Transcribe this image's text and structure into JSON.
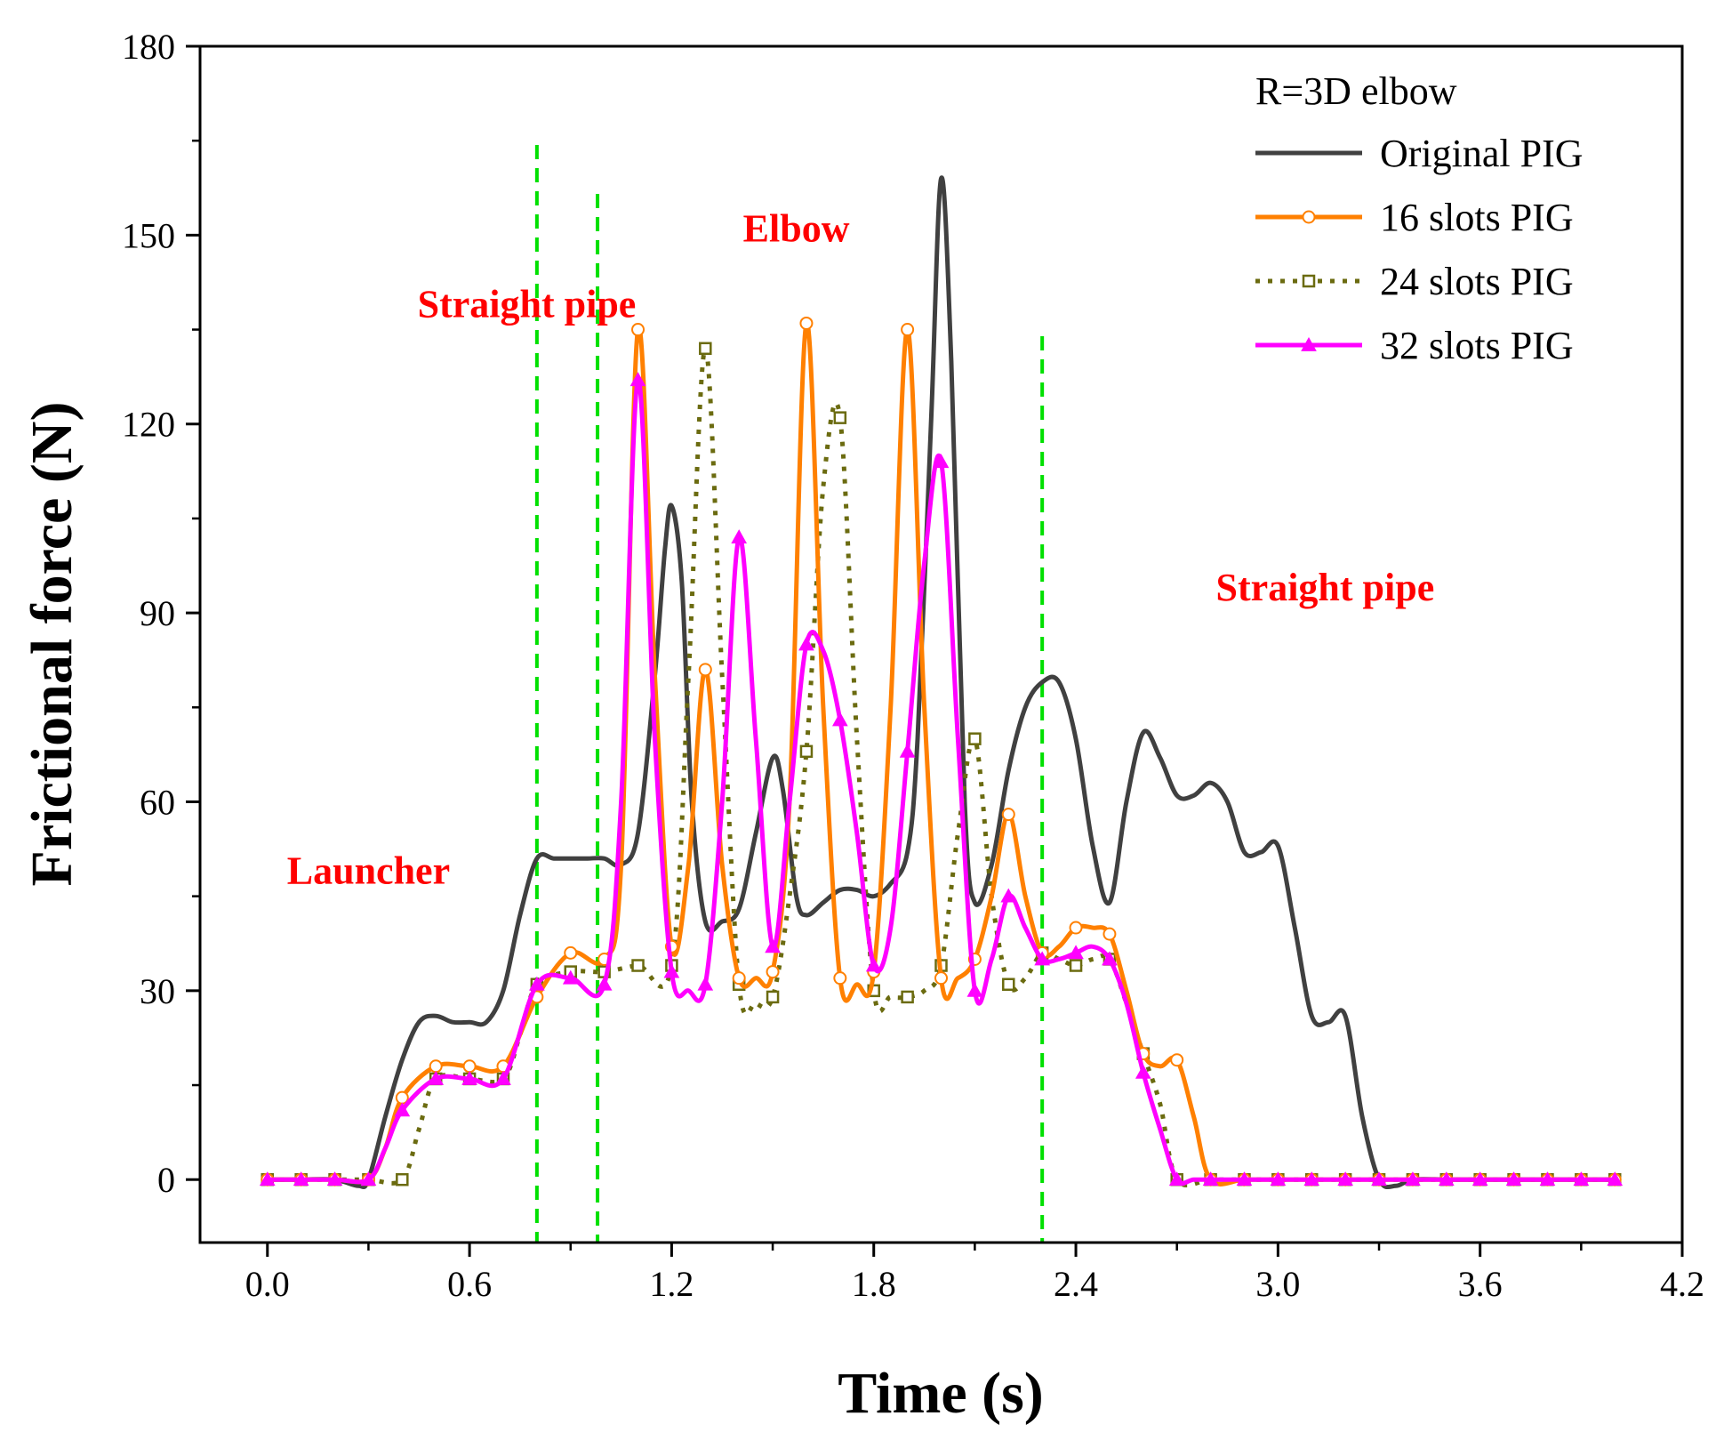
{
  "chart_data": {
    "type": "line",
    "title": "",
    "xlabel": "Time (s)",
    "ylabel": "Frictional force (N)",
    "xlim": [
      -0.2,
      4.2
    ],
    "ylim": [
      -10,
      180
    ],
    "xticks": [
      0.0,
      0.6,
      1.2,
      1.8,
      2.4,
      3.0,
      3.6,
      4.2
    ],
    "xtick_labels": [
      "0.0",
      "0.6",
      "1.2",
      "1.8",
      "2.4",
      "3.0",
      "3.6",
      "4.2"
    ],
    "yticks": [
      0,
      30,
      60,
      90,
      120,
      150,
      180
    ],
    "ytick_labels": [
      "0",
      "30",
      "60",
      "90",
      "120",
      "150",
      "180"
    ],
    "legend_title": "R=3D elbow",
    "legend_position": "top-right",
    "region_lines_x": [
      0.8,
      0.98,
      2.3
    ],
    "annotations": [
      {
        "text": "Launcher",
        "x": 0.3,
        "y": 47
      },
      {
        "text": "Straight pipe",
        "x": 0.77,
        "y": 137
      },
      {
        "text": "Elbow",
        "x": 1.57,
        "y": 149
      },
      {
        "text": "Straight pipe",
        "x": 3.14,
        "y": 92
      }
    ],
    "series": [
      {
        "name": "Original PIG",
        "color": "#404040",
        "style": "solid",
        "marker": "none",
        "x": [
          0,
          0.1,
          0.2,
          0.27,
          0.3,
          0.35,
          0.4,
          0.45,
          0.5,
          0.55,
          0.6,
          0.65,
          0.7,
          0.75,
          0.8,
          0.85,
          0.9,
          0.95,
          1.0,
          1.05,
          1.1,
          1.15,
          1.18,
          1.2,
          1.23,
          1.26,
          1.3,
          1.35,
          1.4,
          1.45,
          1.5,
          1.53,
          1.57,
          1.6,
          1.65,
          1.7,
          1.75,
          1.8,
          1.85,
          1.9,
          1.93,
          1.97,
          2.0,
          2.03,
          2.07,
          2.1,
          2.15,
          2.2,
          2.25,
          2.3,
          2.35,
          2.4,
          2.45,
          2.5,
          2.55,
          2.6,
          2.65,
          2.7,
          2.75,
          2.8,
          2.85,
          2.9,
          2.95,
          3.0,
          3.05,
          3.1,
          3.15,
          3.2,
          3.25,
          3.3,
          3.35,
          3.4,
          3.5,
          3.6,
          3.7,
          3.8,
          3.9,
          4.0
        ],
        "y": [
          0,
          0,
          0,
          -1,
          0,
          10,
          19,
          25,
          26,
          25,
          25,
          25,
          30,
          42,
          51,
          51,
          51,
          51,
          51,
          50,
          55,
          80,
          100,
          107,
          95,
          60,
          41,
          41,
          43,
          55,
          67,
          62,
          45,
          42,
          44,
          46,
          46,
          45,
          47,
          52,
          70,
          120,
          159,
          130,
          60,
          44,
          50,
          65,
          75,
          79,
          79,
          70,
          53,
          44,
          60,
          71,
          67,
          61,
          61,
          63,
          60,
          52,
          52,
          53,
          40,
          26,
          25,
          26,
          10,
          0,
          -1,
          0,
          0,
          0,
          0,
          0,
          0,
          0
        ]
      },
      {
        "name": "16 slots PIG",
        "color": "#ff8000",
        "style": "solid",
        "marker": "circle",
        "x": [
          0,
          0.1,
          0.2,
          0.3,
          0.35,
          0.4,
          0.5,
          0.6,
          0.7,
          0.8,
          0.9,
          1.0,
          1.05,
          1.1,
          1.15,
          1.2,
          1.25,
          1.3,
          1.35,
          1.4,
          1.45,
          1.5,
          1.55,
          1.6,
          1.65,
          1.7,
          1.75,
          1.8,
          1.85,
          1.9,
          1.95,
          2.0,
          2.05,
          2.1,
          2.15,
          2.2,
          2.25,
          2.3,
          2.35,
          2.4,
          2.45,
          2.5,
          2.55,
          2.6,
          2.65,
          2.7,
          2.75,
          2.8,
          2.9,
          3.0,
          3.1,
          3.2,
          3.3,
          3.4,
          3.5,
          3.6,
          3.7,
          3.8,
          3.9,
          4.0
        ],
        "y": [
          0,
          0,
          0,
          0,
          5,
          13,
          18,
          18,
          18,
          29,
          36,
          35,
          50,
          135,
          80,
          37,
          50,
          81,
          50,
          32,
          32,
          33,
          60,
          136,
          75,
          32,
          31,
          33,
          75,
          135,
          75,
          32,
          32,
          35,
          45,
          58,
          45,
          36,
          37,
          40,
          40,
          39,
          30,
          20,
          18,
          19,
          10,
          0,
          0,
          0,
          0,
          0,
          0,
          0,
          0,
          0,
          0,
          0,
          0,
          0
        ],
        "markers": [
          0,
          0.1,
          0.2,
          0.3,
          0.4,
          0.5,
          0.6,
          0.7,
          0.8,
          0.9,
          1.0,
          1.1,
          1.2,
          1.3,
          1.4,
          1.5,
          1.6,
          1.7,
          1.8,
          1.9,
          2.0,
          2.1,
          2.2,
          2.3,
          2.4,
          2.5,
          2.6,
          2.7,
          2.8,
          2.9,
          3.0,
          3.1,
          3.2,
          3.3,
          3.4,
          3.5,
          3.6,
          3.7,
          3.8,
          3.9,
          4.0
        ]
      },
      {
        "name": "24 slots PIG",
        "color": "#6b6b10",
        "style": "dotted",
        "marker": "square",
        "x": [
          0,
          0.1,
          0.2,
          0.3,
          0.4,
          0.45,
          0.5,
          0.6,
          0.7,
          0.75,
          0.8,
          0.9,
          1.0,
          1.1,
          1.2,
          1.25,
          1.3,
          1.35,
          1.4,
          1.45,
          1.5,
          1.55,
          1.6,
          1.65,
          1.7,
          1.75,
          1.8,
          1.85,
          1.9,
          1.95,
          2.0,
          2.05,
          2.1,
          2.15,
          2.2,
          2.25,
          2.3,
          2.35,
          2.4,
          2.45,
          2.5,
          2.55,
          2.6,
          2.65,
          2.7,
          2.8,
          2.9,
          3.0,
          3.1,
          3.2,
          3.3,
          3.4,
          3.5,
          3.6,
          3.7,
          3.8,
          3.9,
          4.0
        ],
        "y": [
          0,
          0,
          0,
          0,
          0,
          8,
          16,
          16,
          16,
          23,
          31,
          33,
          33,
          34,
          34,
          80,
          132,
          80,
          31,
          28,
          29,
          45,
          68,
          110,
          121,
          70,
          30,
          29,
          29,
          30,
          34,
          55,
          70,
          45,
          31,
          32,
          36,
          35,
          34,
          35,
          35,
          28,
          20,
          12,
          0,
          0,
          0,
          0,
          0,
          0,
          0,
          0,
          0,
          0,
          0,
          0,
          0,
          0
        ],
        "markers": [
          0,
          0.1,
          0.2,
          0.3,
          0.4,
          0.5,
          0.6,
          0.7,
          0.8,
          0.9,
          1.0,
          1.1,
          1.2,
          1.3,
          1.4,
          1.5,
          1.6,
          1.7,
          1.8,
          1.9,
          2.0,
          2.1,
          2.2,
          2.3,
          2.4,
          2.5,
          2.6,
          2.7,
          2.8,
          2.9,
          3.0,
          3.1,
          3.2,
          3.3,
          3.4,
          3.5,
          3.6,
          3.7,
          3.8,
          3.9,
          4.0
        ]
      },
      {
        "name": "32 slots PIG",
        "color": "#ff00ff",
        "style": "solid",
        "marker": "triangle",
        "x": [
          0,
          0.1,
          0.2,
          0.3,
          0.35,
          0.4,
          0.5,
          0.6,
          0.7,
          0.8,
          0.9,
          1.0,
          1.05,
          1.1,
          1.15,
          1.2,
          1.25,
          1.3,
          1.35,
          1.4,
          1.45,
          1.5,
          1.55,
          1.6,
          1.65,
          1.7,
          1.75,
          1.8,
          1.85,
          1.9,
          1.95,
          2.0,
          2.05,
          2.1,
          2.15,
          2.2,
          2.25,
          2.3,
          2.35,
          2.4,
          2.45,
          2.5,
          2.55,
          2.6,
          2.65,
          2.7,
          2.75,
          2.8,
          2.9,
          3.0,
          3.1,
          3.2,
          3.3,
          3.4,
          3.5,
          3.6,
          3.7,
          3.8,
          3.9,
          4.0
        ],
        "y": [
          0,
          0,
          0,
          0,
          5,
          11,
          16,
          16,
          16,
          31,
          32,
          31,
          60,
          127,
          70,
          33,
          30,
          31,
          60,
          102,
          70,
          37,
          60,
          85,
          84,
          73,
          55,
          34,
          40,
          68,
          98,
          114,
          70,
          30,
          35,
          45,
          40,
          35,
          35,
          36,
          37,
          35,
          28,
          17,
          8,
          0,
          0,
          0,
          0,
          0,
          0,
          0,
          0,
          0,
          0,
          0,
          0,
          0,
          0,
          0
        ],
        "markers": [
          0,
          0.1,
          0.2,
          0.3,
          0.4,
          0.5,
          0.6,
          0.7,
          0.8,
          0.9,
          1.0,
          1.1,
          1.2,
          1.3,
          1.4,
          1.5,
          1.6,
          1.7,
          1.8,
          1.9,
          2.0,
          2.1,
          2.2,
          2.3,
          2.4,
          2.5,
          2.6,
          2.7,
          2.8,
          2.9,
          3.0,
          3.1,
          3.2,
          3.3,
          3.4,
          3.5,
          3.6,
          3.7,
          3.8,
          3.9,
          4.0
        ]
      }
    ]
  }
}
